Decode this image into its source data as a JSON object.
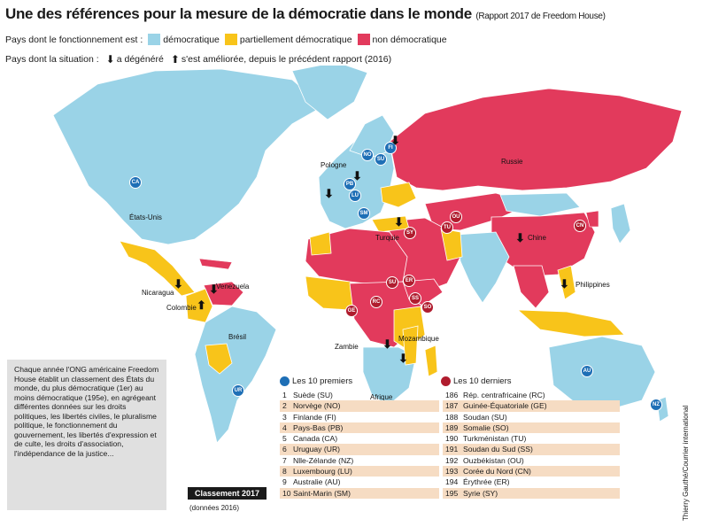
{
  "title": "Une des références pour la mesure de la démocratie dans le monde",
  "subtitle": "(Rapport 2017 de Freedom House)",
  "legend": {
    "status_label": "Pays dont le fonctionnement est :",
    "democratic": "démocratique",
    "partly": "partiellement démocratique",
    "not": "non démocratique",
    "trend_label": "Pays dont la situation :",
    "degraded": "a dégénéré",
    "improved": "s'est améliorée, depuis le précédent rapport (2016)"
  },
  "colors": {
    "democratic": "#9ad3e7",
    "partly": "#f8c41a",
    "not": "#e23a5c",
    "top_dot": "#1e6fb6",
    "bottom_dot": "#b01c2e",
    "ocean": "#ffffff"
  },
  "map_labels": {
    "russia": "Russie",
    "usa": "États-Unis",
    "poland": "Pologne",
    "turkey": "Turquie",
    "china": "Chine",
    "philippines": "Philippines",
    "nicaragua": "Nicaragua",
    "venezuela": "Venezuela",
    "colombia": "Colombie",
    "brazil": "Brésil",
    "zambia": "Zambie",
    "mozambique": "Mozambique",
    "south_africa": "Afrique du Sud"
  },
  "badges": {
    "ca": "CA",
    "fi": "FI",
    "no": "NO",
    "su": "SU",
    "pb": "PB",
    "lu": "LU",
    "sm": "SM",
    "ur": "UR",
    "au": "AU",
    "nz": "NZ",
    "cn": "CN",
    "ou": "OU",
    "tu": "TU",
    "sy": "SY",
    "so": "SO",
    "er": "ER",
    "sd": "SU",
    "ss": "SS",
    "rc": "RC",
    "ge": "GE"
  },
  "trend_symbols": {
    "down": "⬇",
    "up": "⬆"
  },
  "explanation": "Chaque année l'ONG américaine Freedom House établit un classement des États du monde, du plus démocratique (1er) au moins démocratique (195e), en agrégeant différentes données sur les droits politiques, les libertés civiles, le pluralisme politique, le fonctionnement du gouvernement, les libertés d'expression et de culte, les droits d'association, l'indépendance de la justice...",
  "top10": {
    "heading": "Les 10 premiers",
    "items": [
      {
        "rank": "1",
        "name": "Suède (SU)"
      },
      {
        "rank": "2",
        "name": "Norvège (NO)"
      },
      {
        "rank": "3",
        "name": "Finlande (FI)"
      },
      {
        "rank": "4",
        "name": "Pays-Bas (PB)"
      },
      {
        "rank": "5",
        "name": "Canada (CA)"
      },
      {
        "rank": "6",
        "name": "Uruguay (UR)"
      },
      {
        "rank": "7",
        "name": "Nlle-Zélande (NZ)"
      },
      {
        "rank": "8",
        "name": "Luxembourg (LU)"
      },
      {
        "rank": "9",
        "name": "Australie (AU)"
      },
      {
        "rank": "10",
        "name": "Saint-Marin (SM)"
      }
    ]
  },
  "bottom10": {
    "heading": "Les 10 derniers",
    "items": [
      {
        "rank": "186",
        "name": "Rép. centrafricaine (RC)"
      },
      {
        "rank": "187",
        "name": "Guinée-Équatoriale (GE)"
      },
      {
        "rank": "188",
        "name": "Soudan (SU)"
      },
      {
        "rank": "189",
        "name": "Somalie (SO)"
      },
      {
        "rank": "190",
        "name": "Turkménistan (TU)"
      },
      {
        "rank": "191",
        "name": "Soudan du Sud (SS)"
      },
      {
        "rank": "192",
        "name": "Ouzbékistan (OU)"
      },
      {
        "rank": "193",
        "name": "Corée du Nord (CN)"
      },
      {
        "rank": "194",
        "name": "Érythrée (ER)"
      },
      {
        "rank": "195",
        "name": "Syrie (SY)"
      }
    ]
  },
  "classement": "Classement 2017",
  "classement_note": "(données 2016)",
  "credit": "Thierry Gauthé/Courrier international"
}
